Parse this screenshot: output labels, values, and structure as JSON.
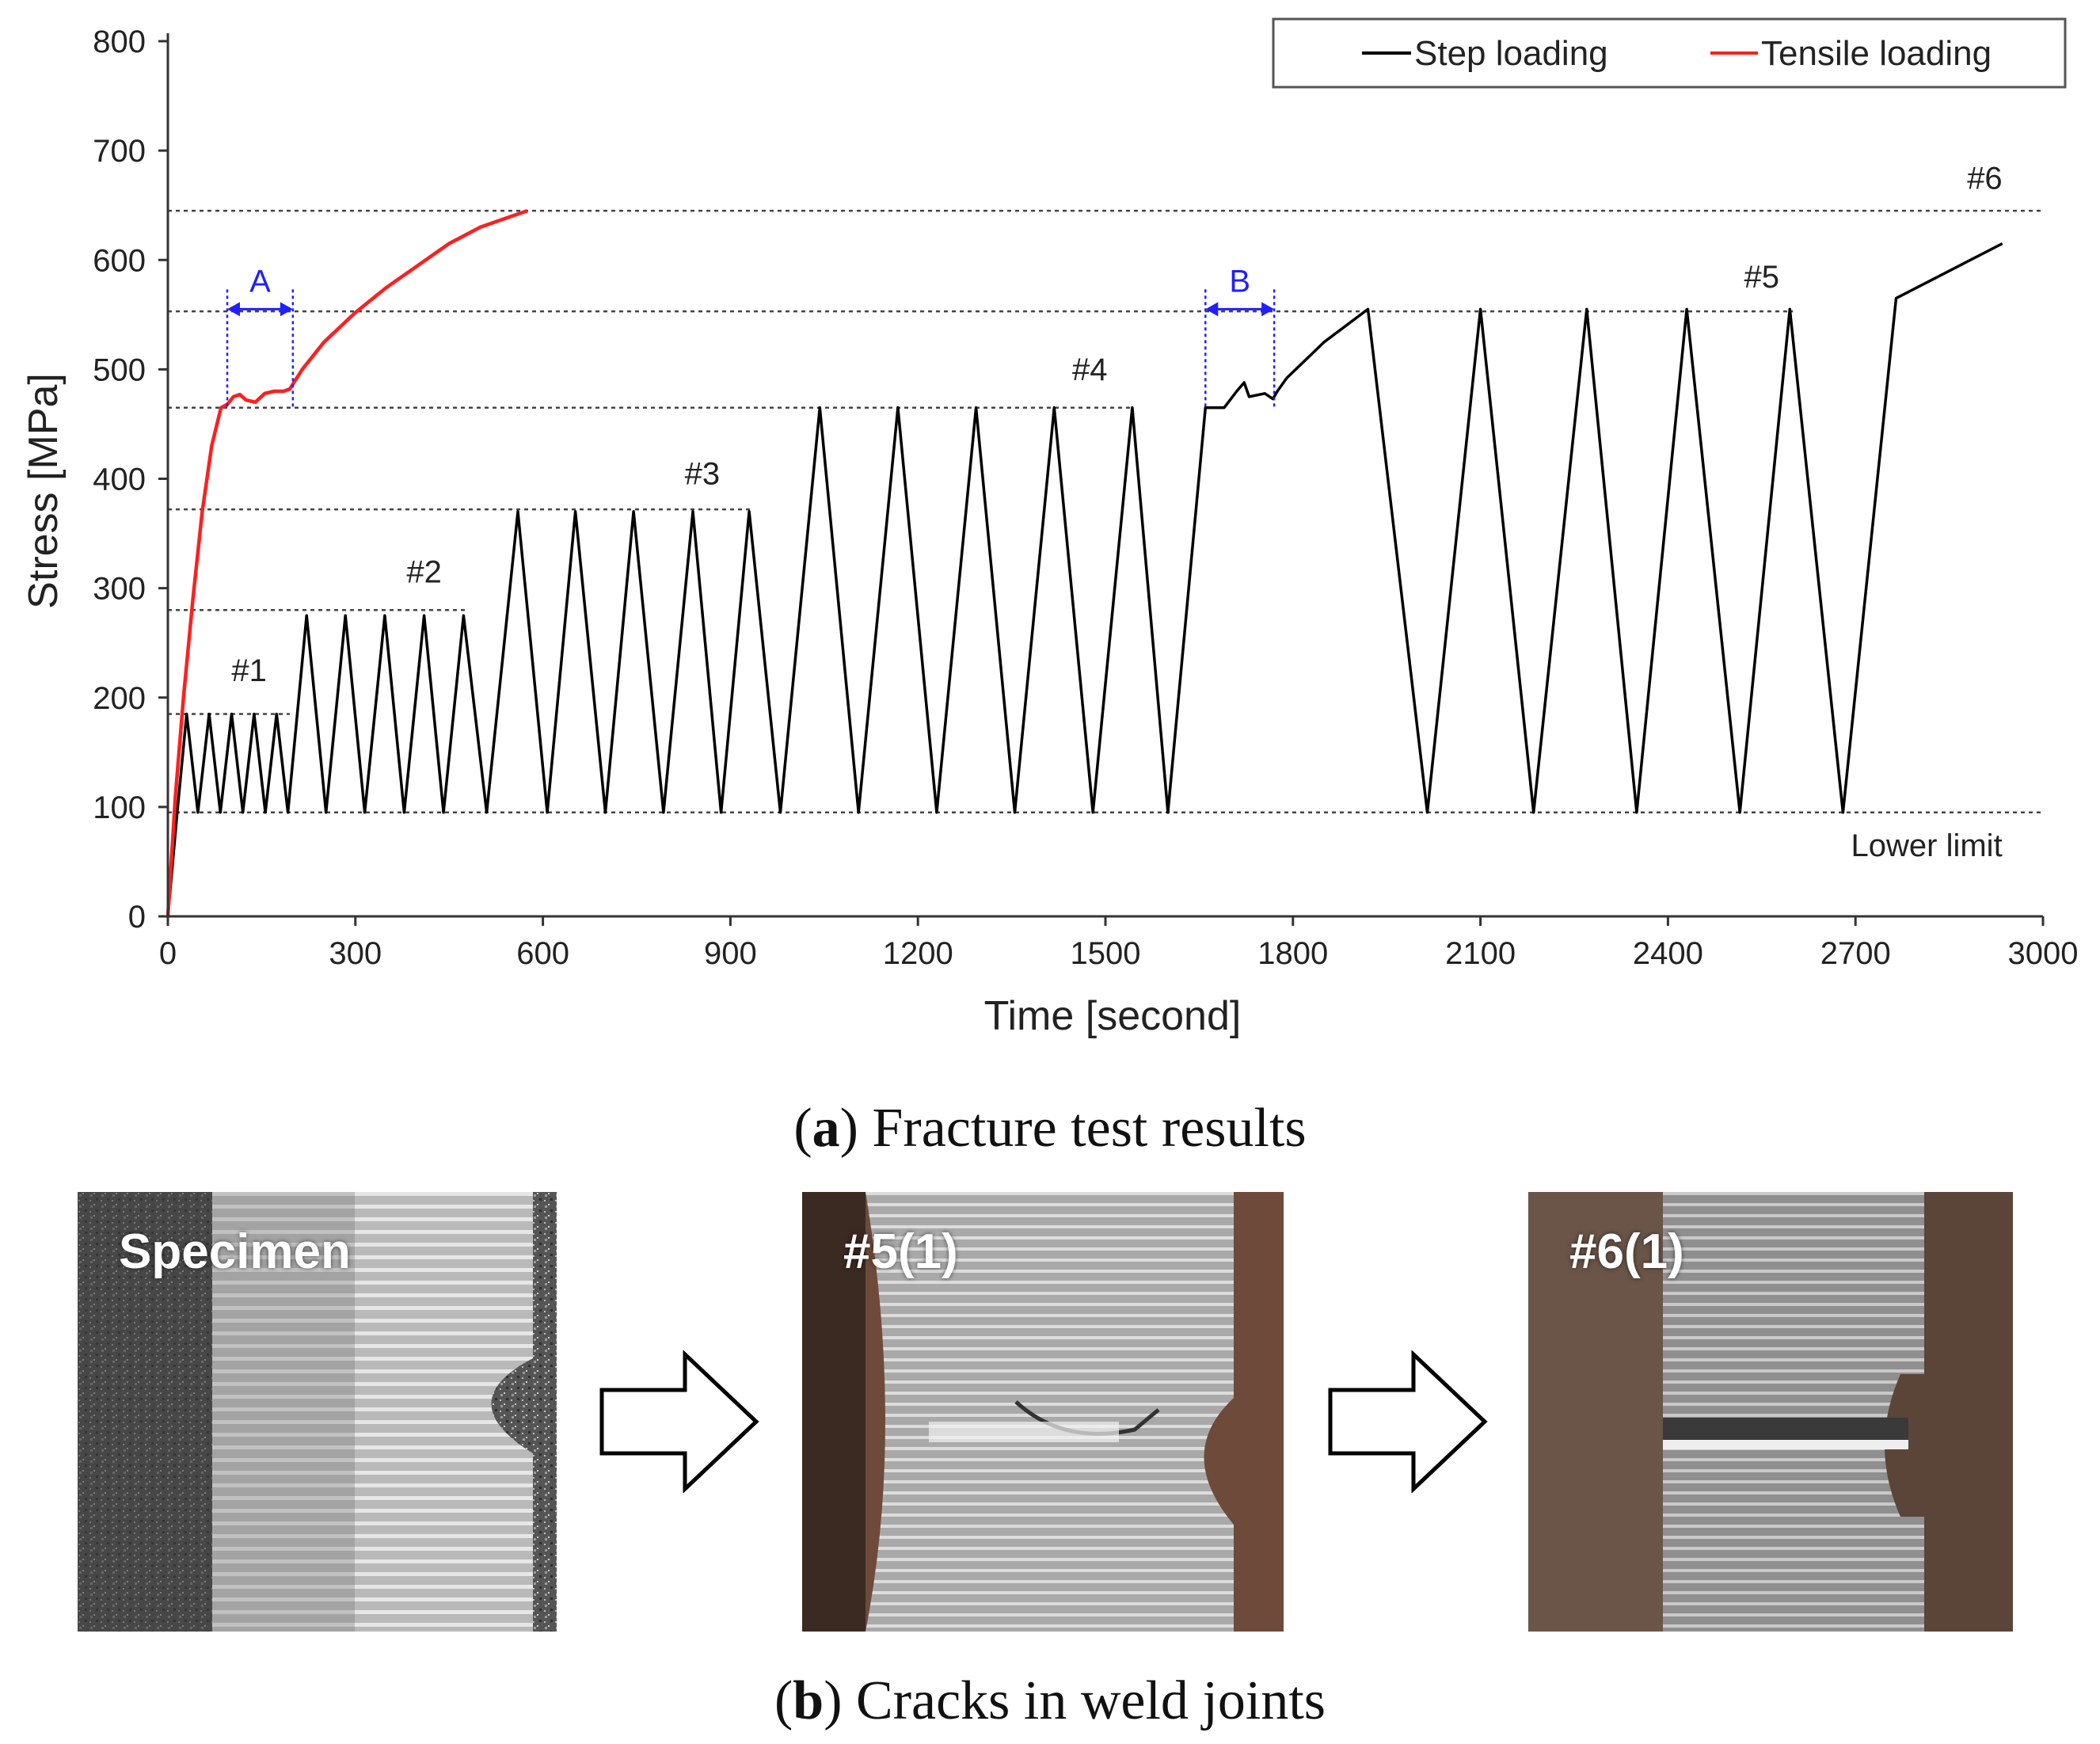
{
  "figure": {
    "caption_a": {
      "letter": "a",
      "text": "Fracture test results"
    },
    "caption_b": {
      "letter": "b",
      "text": "Cracks in weld joints"
    }
  },
  "chart_data": {
    "type": "line",
    "xlabel": "Time [second]",
    "ylabel": "Stress [MPa]",
    "xlim": [
      0,
      3000
    ],
    "ylim": [
      0,
      800
    ],
    "xticks": [
      0,
      300,
      600,
      900,
      1200,
      1500,
      1800,
      2100,
      2400,
      2700,
      3000
    ],
    "yticks": [
      0,
      100,
      200,
      300,
      400,
      500,
      600,
      700,
      800
    ],
    "grid": false,
    "legend_position": "top-right",
    "series": [
      {
        "name": "Step loading",
        "color": "#000000",
        "x": [
          0,
          15,
          30,
          48,
          66,
          84,
          102,
          120,
          138,
          156,
          174,
          192,
          222,
          253,
          284,
          315,
          347,
          378,
          410,
          441,
          473,
          510,
          560,
          607,
          652,
          700,
          745,
          793,
          840,
          885,
          930,
          980,
          1043,
          1105,
          1168,
          1230,
          1293,
          1355,
          1418,
          1480,
          1543,
          1600,
          1660,
          1690,
          1710,
          1722,
          1730,
          1755,
          1768,
          1775,
          1790,
          1850,
          1920,
          2015,
          2100,
          2185,
          2270,
          2350,
          2430,
          2515,
          2595,
          2680,
          2765,
          2850,
          2935
        ],
        "y": [
          0,
          95,
          185,
          95,
          185,
          95,
          185,
          95,
          185,
          95,
          185,
          95,
          275,
          95,
          275,
          95,
          275,
          95,
          275,
          95,
          275,
          95,
          370,
          95,
          370,
          95,
          370,
          95,
          370,
          95,
          370,
          95,
          465,
          95,
          465,
          95,
          465,
          95,
          465,
          95,
          465,
          95,
          465,
          465,
          480,
          488,
          475,
          478,
          473,
          480,
          492,
          525,
          555,
          95,
          555,
          95,
          555,
          95,
          555,
          95,
          555,
          95,
          565,
          590,
          615
        ]
      },
      {
        "name": "Tensile loading",
        "color": "#ff1f1f",
        "x": [
          0,
          12,
          25,
          40,
          55,
          70,
          85,
          95,
          105,
          115,
          125,
          140,
          155,
          170,
          185,
          195,
          215,
          250,
          300,
          350,
          400,
          450,
          500,
          550,
          575
        ],
        "y": [
          0,
          110,
          200,
          290,
          370,
          430,
          465,
          468,
          475,
          477,
          472,
          470,
          478,
          480,
          480,
          482,
          500,
          525,
          552,
          575,
          595,
          615,
          630,
          640,
          645
        ]
      }
    ],
    "reference_lines": [
      {
        "label": "Lower limit",
        "y": 95,
        "x_start": 0,
        "x_end": 3000
      },
      {
        "label": "#1",
        "y": 185,
        "x_start": 0,
        "x_end": 195
      },
      {
        "label": "#2",
        "y": 280,
        "x_start": 0,
        "x_end": 480
      },
      {
        "label": "#3",
        "y": 372,
        "x_start": 0,
        "x_end": 935
      },
      {
        "label": "#4",
        "y": 465,
        "x_start": 0,
        "x_end": 1545
      },
      {
        "label": "#5",
        "y": 553,
        "x_start": 0,
        "x_end": 2600
      },
      {
        "label": "#6",
        "y": 645,
        "x_start": 0,
        "x_end": 3000
      }
    ],
    "annotations": [
      {
        "label": "A",
        "x_start": 95,
        "x_end": 200,
        "y": 555,
        "color": "#1f1fff"
      },
      {
        "label": "B",
        "x_start": 1660,
        "x_end": 1770,
        "y": 555,
        "color": "#1f1fff"
      }
    ],
    "step_labels": [
      {
        "text": "#1",
        "x": 130,
        "y": 215
      },
      {
        "text": "#2",
        "x": 410,
        "y": 305
      },
      {
        "text": "#3",
        "x": 855,
        "y": 395
      },
      {
        "text": "#4",
        "x": 1475,
        "y": 490
      },
      {
        "text": "#5",
        "x": 2550,
        "y": 575
      },
      {
        "text": "#6",
        "x": 2935,
        "y": 665
      },
      {
        "text": "Lower limit",
        "x": 2935,
        "y": 55
      }
    ]
  },
  "photos": [
    {
      "label": "Specimen",
      "tone": "#5a5a5a"
    },
    {
      "label": "#5(1)",
      "tone": "#8a8a8a"
    },
    {
      "label": "#6(1)",
      "tone": "#7a7a7a"
    }
  ]
}
